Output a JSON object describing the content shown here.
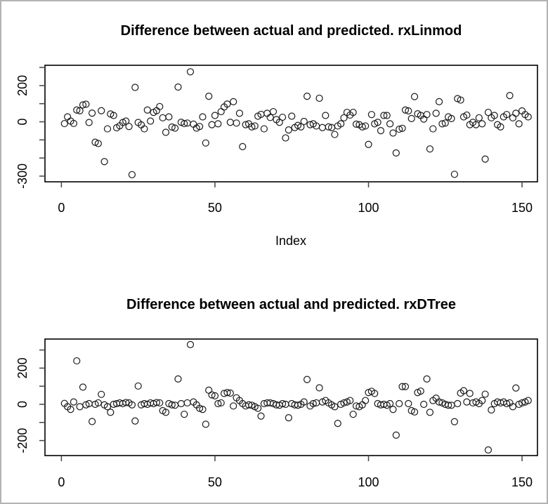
{
  "window": {
    "background": "#ffffff",
    "border_color": "#b4b4b4",
    "point_color": "#1a1a1a",
    "axis_color": "#000000"
  },
  "chart_data": [
    {
      "type": "scatter",
      "title": "Difference between actual and predicted. rxLinmod",
      "xlabel": "Index",
      "ylabel": "",
      "legend": "none",
      "grid": false,
      "marker": "open-circle",
      "x_start": 1,
      "xlim": [
        -5,
        157
      ],
      "ylim": [
        -324,
        308
      ],
      "x_ticks": [
        0,
        50,
        100,
        150
      ],
      "x_tick_labels": [
        {
          "v": 0,
          "label": "0"
        },
        {
          "v": 50,
          "label": "50"
        },
        {
          "v": 100,
          "label": "100"
        },
        {
          "v": 150,
          "label": "150"
        }
      ],
      "y_ticks": [
        300,
        200,
        100,
        0,
        -100,
        -200,
        -300
      ],
      "y_tick_labels": [
        {
          "v": 200,
          "label": "200"
        },
        {
          "v": 0,
          "label": "0"
        },
        {
          "v": -300,
          "label": "-300"
        }
      ],
      "y": [
        -10,
        27,
        4,
        -9,
        65,
        61,
        93,
        97,
        -4,
        48,
        -113,
        -120,
        61,
        -220,
        -39,
        43,
        35,
        -33,
        -22,
        -4,
        4,
        -26,
        -292,
        190,
        -4,
        -17,
        -39,
        65,
        4,
        52,
        61,
        84,
        22,
        -58,
        27,
        -29,
        -35,
        192,
        -3,
        -10,
        -7,
        276,
        -13,
        -35,
        -26,
        27,
        -117,
        141,
        -16,
        35,
        -11,
        56,
        82,
        98,
        -3,
        111,
        -7,
        47,
        -137,
        -16,
        -11,
        -28,
        -23,
        31,
        41,
        -39,
        47,
        24,
        56,
        12,
        -3,
        25,
        -89,
        -45,
        31,
        -32,
        -20,
        -28,
        2,
        141,
        -16,
        -11,
        -23,
        130,
        -32,
        35,
        -28,
        -32,
        -70,
        -23,
        -11,
        22,
        52,
        37,
        52,
        -13,
        -16,
        -28,
        -23,
        -125,
        40,
        -11,
        -3,
        -49,
        35,
        35,
        -11,
        -62,
        -172,
        -41,
        -36,
        65,
        60,
        18,
        139,
        44,
        35,
        15,
        40,
        -150,
        -39,
        47,
        111,
        -11,
        -7,
        27,
        18,
        -290,
        128,
        120,
        27,
        37,
        -16,
        -3,
        -16,
        22,
        -11,
        -206,
        52,
        22,
        35,
        -16,
        -28,
        27,
        40,
        145,
        22,
        47,
        -11,
        60,
        40,
        27
      ]
    },
    {
      "type": "scatter",
      "title": "Difference between actual and predicted. rxDTree",
      "xlabel": "",
      "ylabel": "",
      "legend": "none",
      "grid": false,
      "marker": "open-circle",
      "x_start": 1,
      "xlim": [
        -5,
        157
      ],
      "ylim": [
        -271,
        337
      ],
      "x_ticks": [
        0,
        50,
        100,
        150
      ],
      "x_tick_labels": [
        {
          "v": 0,
          "label": "0"
        },
        {
          "v": 50,
          "label": "50"
        },
        {
          "v": 100,
          "label": "100"
        },
        {
          "v": 150,
          "label": "150"
        }
      ],
      "y_ticks": [
        300,
        200,
        100,
        0,
        -100,
        -200
      ],
      "y_tick_labels": [
        {
          "v": 200,
          "label": "200"
        },
        {
          "v": 0,
          "label": "0"
        },
        {
          "v": -200,
          "label": "-200"
        }
      ],
      "y": [
        5,
        -13,
        -28,
        13,
        240,
        -13,
        95,
        -3,
        4,
        -95,
        0,
        8,
        55,
        -3,
        -13,
        -44,
        0,
        4,
        8,
        4,
        10,
        8,
        -3,
        -92,
        101,
        -3,
        4,
        0,
        8,
        4,
        10,
        8,
        -35,
        -44,
        4,
        -3,
        -5,
        140,
        4,
        -55,
        8,
        330,
        13,
        -3,
        -22,
        -28,
        -110,
        78,
        52,
        47,
        4,
        8,
        60,
        65,
        62,
        -9,
        36,
        21,
        4,
        -9,
        -3,
        -5,
        -13,
        -22,
        -65,
        4,
        8,
        8,
        4,
        -3,
        -5,
        4,
        0,
        -74,
        4,
        -3,
        -5,
        0,
        13,
        137,
        -9,
        4,
        8,
        91,
        13,
        21,
        8,
        -3,
        -13,
        -105,
        0,
        8,
        13,
        21,
        -55,
        -9,
        -13,
        -3,
        21,
        65,
        72,
        60,
        4,
        -3,
        0,
        -5,
        4,
        -28,
        -170,
        4,
        98,
        98,
        4,
        -35,
        -42,
        65,
        73,
        0,
        140,
        -44,
        21,
        34,
        13,
        8,
        0,
        -5,
        -5,
        -96,
        4,
        62,
        75,
        13,
        60,
        8,
        13,
        4,
        21,
        56,
        -252,
        -31,
        4,
        13,
        8,
        13,
        4,
        8,
        -13,
        90,
        0,
        8,
        13,
        21
      ]
    }
  ]
}
